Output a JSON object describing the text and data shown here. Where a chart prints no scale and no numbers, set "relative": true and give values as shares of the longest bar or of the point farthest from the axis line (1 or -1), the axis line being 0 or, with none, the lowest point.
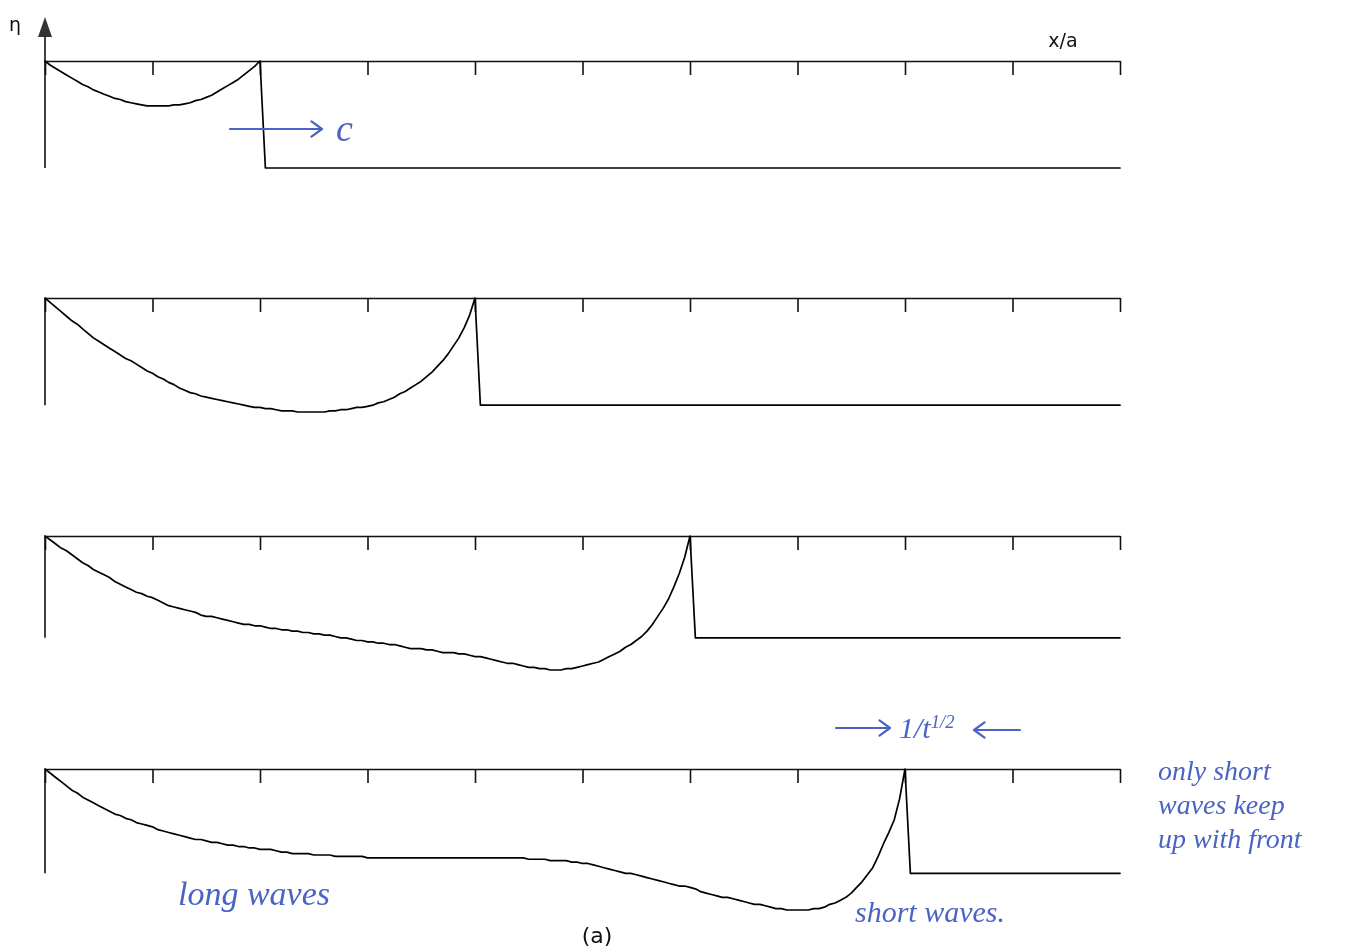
{
  "chart_data": [
    {
      "type": "line",
      "xlabel": "x/a",
      "ylabel": "η",
      "relative": true,
      "color": "#000000",
      "categories": [
        null,
        null,
        null,
        null,
        null,
        null,
        null,
        null,
        null,
        null,
        null,
        null,
        null,
        null,
        null,
        null,
        null,
        null,
        null,
        null,
        null,
        null,
        null,
        null,
        null,
        null,
        null,
        null,
        null,
        null,
        null,
        null,
        null,
        null,
        null,
        null,
        null,
        null,
        null,
        null,
        null,
        null,
        null,
        null,
        null,
        null,
        null,
        null,
        null,
        null,
        null,
        null,
        null,
        null,
        null,
        null,
        null,
        null,
        null,
        null,
        null,
        null,
        null,
        null,
        null,
        null,
        null,
        null,
        null,
        null,
        null,
        null,
        null,
        null,
        null,
        null,
        null,
        null,
        null,
        null,
        null,
        null,
        null,
        null,
        null,
        null,
        null,
        null,
        null,
        null,
        null,
        null,
        null,
        null,
        null,
        null,
        null,
        null,
        null,
        null,
        null,
        null,
        null,
        null,
        null,
        null,
        null,
        null,
        null,
        null,
        null,
        null,
        null,
        null,
        null,
        null,
        null,
        null,
        null,
        null,
        null,
        null,
        null,
        null,
        null,
        null,
        null,
        null,
        null,
        null,
        null,
        null,
        null,
        null,
        null,
        null,
        null,
        null,
        null,
        null,
        null,
        null,
        null,
        null,
        null,
        null,
        null,
        null,
        null,
        null,
        null,
        null,
        null,
        null,
        null,
        null,
        null,
        null,
        null,
        null,
        null,
        null,
        null,
        null,
        null,
        null,
        null,
        null,
        null,
        null,
        null,
        null,
        null,
        null,
        null,
        null,
        null,
        null,
        null,
        null,
        null,
        null,
        null,
        null,
        null,
        null,
        null,
        null,
        null,
        null,
        null,
        null,
        null,
        null,
        null,
        null,
        null,
        null,
        null,
        null,
        null
      ],
      "values": [
        0,
        -0.04,
        -0.07,
        -0.1,
        -0.13,
        -0.16,
        -0.19,
        -0.22,
        -0.24,
        -0.27,
        -0.29,
        -0.31,
        -0.33,
        -0.35,
        -0.36,
        -0.38,
        -0.39,
        -0.4,
        -0.41,
        -0.42,
        -0.42,
        -0.42,
        -0.42,
        -0.42,
        -0.41,
        -0.41,
        -0.4,
        -0.39,
        -0.37,
        -0.36,
        -0.34,
        -0.32,
        -0.29,
        -0.26,
        -0.23,
        -0.2,
        -0.17,
        -0.13,
        -0.09,
        -0.05,
        0,
        -1,
        -1,
        -1,
        -1,
        -1,
        -1,
        -1,
        -1,
        -1,
        -1,
        -1,
        -1,
        -1,
        -1,
        -1,
        -1,
        -1,
        -1,
        -1,
        -1,
        -1,
        -1,
        -1,
        -1,
        -1,
        -1,
        -1,
        -1,
        -1,
        -1,
        -1,
        -1,
        -1,
        -1,
        -1,
        -1,
        -1,
        -1,
        -1,
        -1,
        -1,
        -1,
        -1,
        -1,
        -1,
        -1,
        -1,
        -1,
        -1,
        -1,
        -1,
        -1,
        -1,
        -1,
        -1,
        -1,
        -1,
        -1,
        -1,
        -1,
        -1,
        -1,
        -1,
        -1,
        -1,
        -1,
        -1,
        -1,
        -1,
        -1,
        -1,
        -1,
        -1,
        -1,
        -1,
        -1,
        -1,
        -1,
        -1,
        -1,
        -1,
        -1,
        -1,
        -1,
        -1,
        -1,
        -1,
        -1,
        -1,
        -1,
        -1,
        -1,
        -1,
        -1,
        -1,
        -1,
        -1,
        -1,
        -1,
        -1,
        -1,
        -1,
        -1,
        -1,
        -1,
        -1,
        -1,
        -1,
        -1,
        -1,
        -1,
        -1,
        -1,
        -1,
        -1,
        -1,
        -1,
        -1,
        -1,
        -1,
        -1,
        -1,
        -1,
        -1,
        -1,
        -1,
        -1,
        -1,
        -1,
        -1,
        -1,
        -1,
        -1,
        -1,
        -1,
        -1,
        -1,
        -1,
        -1,
        -1,
        -1,
        -1,
        -1,
        -1,
        -1,
        -1,
        -1,
        -1,
        -1,
        -1,
        -1,
        -1,
        -1,
        -1,
        -1,
        -1,
        -1,
        -1,
        -1,
        -1
      ],
      "annotations": [
        "c"
      ]
    },
    {
      "type": "line",
      "relative": true,
      "color": "#000000",
      "categories": [
        null,
        null,
        null,
        null,
        null,
        null,
        null,
        null,
        null,
        null,
        null,
        null,
        null,
        null,
        null,
        null,
        null,
        null,
        null,
        null,
        null,
        null,
        null,
        null,
        null,
        null,
        null,
        null,
        null,
        null,
        null,
        null,
        null,
        null,
        null,
        null,
        null,
        null,
        null,
        null,
        null,
        null,
        null,
        null,
        null,
        null,
        null,
        null,
        null,
        null,
        null,
        null,
        null,
        null,
        null,
        null,
        null,
        null,
        null,
        null,
        null,
        null,
        null,
        null,
        null,
        null,
        null,
        null,
        null,
        null,
        null,
        null,
        null,
        null,
        null,
        null,
        null,
        null,
        null,
        null,
        null,
        null,
        null,
        null,
        null,
        null,
        null,
        null,
        null,
        null,
        null,
        null,
        null,
        null,
        null,
        null,
        null,
        null,
        null,
        null,
        null,
        null,
        null,
        null,
        null,
        null,
        null,
        null,
        null,
        null,
        null,
        null,
        null,
        null,
        null,
        null,
        null,
        null,
        null,
        null,
        null,
        null,
        null,
        null,
        null,
        null,
        null,
        null,
        null,
        null,
        null,
        null,
        null,
        null,
        null,
        null,
        null,
        null,
        null,
        null,
        null,
        null,
        null,
        null,
        null,
        null,
        null,
        null,
        null,
        null,
        null,
        null,
        null,
        null,
        null,
        null,
        null,
        null,
        null,
        null,
        null,
        null,
        null,
        null,
        null,
        null,
        null,
        null,
        null,
        null,
        null,
        null,
        null,
        null,
        null,
        null,
        null,
        null,
        null,
        null,
        null,
        null,
        null,
        null,
        null,
        null,
        null,
        null,
        null,
        null,
        null,
        null,
        null,
        null,
        null,
        null,
        null,
        null,
        null,
        null,
        null
      ],
      "values": [
        0,
        -0.04,
        -0.08,
        -0.12,
        -0.16,
        -0.2,
        -0.23,
        -0.27,
        -0.31,
        -0.35,
        -0.38,
        -0.41,
        -0.44,
        -0.47,
        -0.5,
        -0.53,
        -0.55,
        -0.58,
        -0.61,
        -0.64,
        -0.66,
        -0.69,
        -0.71,
        -0.74,
        -0.76,
        -0.79,
        -0.81,
        -0.83,
        -0.84,
        -0.86,
        -0.87,
        -0.88,
        -0.89,
        -0.9,
        -0.91,
        -0.92,
        -0.93,
        -0.94,
        -0.95,
        -0.96,
        -0.96,
        -0.97,
        -0.97,
        -0.98,
        -0.99,
        -0.99,
        -0.99,
        -1,
        -1,
        -1,
        -1,
        -1,
        -1,
        -0.99,
        -0.99,
        -0.98,
        -0.98,
        -0.97,
        -0.96,
        -0.96,
        -0.95,
        -0.94,
        -0.92,
        -0.91,
        -0.89,
        -0.87,
        -0.84,
        -0.82,
        -0.79,
        -0.76,
        -0.73,
        -0.69,
        -0.65,
        -0.6,
        -0.55,
        -0.49,
        -0.42,
        -0.35,
        -0.26,
        -0.15,
        0,
        -0.94,
        -0.94,
        -0.94,
        -0.94,
        -0.94,
        -0.94,
        -0.94,
        -0.94,
        -0.94,
        -0.94,
        -0.94,
        -0.94,
        -0.94,
        -0.94,
        -0.94,
        -0.94,
        -0.94,
        -0.94,
        -0.94,
        -0.94,
        -0.94,
        -0.94,
        -0.94,
        -0.94,
        -0.94,
        -0.94,
        -0.94,
        -0.94,
        -0.94,
        -0.94,
        -0.94,
        -0.94,
        -0.94,
        -0.94,
        -0.94,
        -0.94,
        -0.94,
        -0.94,
        -0.94,
        -0.94,
        -0.94,
        -0.94,
        -0.94,
        -0.94,
        -0.94,
        -0.94,
        -0.94,
        -0.94,
        -0.94,
        -0.94,
        -0.94,
        -0.94,
        -0.94,
        -0.94,
        -0.94,
        -0.94,
        -0.94,
        -0.94,
        -0.94,
        -0.94,
        -0.94,
        -0.94,
        -0.94,
        -0.94,
        -0.94,
        -0.94,
        -0.94,
        -0.94,
        -0.94,
        -0.94,
        -0.94,
        -0.94,
        -0.94,
        -0.94,
        -0.94,
        -0.94,
        -0.94,
        -0.94,
        -0.94,
        -0.94,
        -0.94,
        -0.94,
        -0.94,
        -0.94,
        -0.94,
        -0.94,
        -0.94,
        -0.94,
        -0.94,
        -0.94,
        -0.94,
        -0.94,
        -0.94,
        -0.94,
        -0.94,
        -0.94,
        -0.94,
        -0.94,
        -0.94,
        -0.94,
        -0.94,
        -0.94,
        -0.94,
        -0.94,
        -0.94,
        -0.94,
        -0.94,
        -0.94,
        -0.94,
        -0.94,
        -0.94,
        -0.94,
        -0.94,
        -0.94,
        -0.94,
        -0.94,
        -0.94,
        -0.94,
        -0.94,
        -0.94
      ]
    },
    {
      "type": "line",
      "relative": true,
      "color": "#000000",
      "categories": [
        null,
        null,
        null,
        null,
        null,
        null,
        null,
        null,
        null,
        null,
        null,
        null,
        null,
        null,
        null,
        null,
        null,
        null,
        null,
        null,
        null,
        null,
        null,
        null,
        null,
        null,
        null,
        null,
        null,
        null,
        null,
        null,
        null,
        null,
        null,
        null,
        null,
        null,
        null,
        null,
        null,
        null,
        null,
        null,
        null,
        null,
        null,
        null,
        null,
        null,
        null,
        null,
        null,
        null,
        null,
        null,
        null,
        null,
        null,
        null,
        null,
        null,
        null,
        null,
        null,
        null,
        null,
        null,
        null,
        null,
        null,
        null,
        null,
        null,
        null,
        null,
        null,
        null,
        null,
        null,
        null,
        null,
        null,
        null,
        null,
        null,
        null,
        null,
        null,
        null,
        null,
        null,
        null,
        null,
        null,
        null,
        null,
        null,
        null,
        null,
        null,
        null,
        null,
        null,
        null,
        null,
        null,
        null,
        null,
        null,
        null,
        null,
        null,
        null,
        null,
        null,
        null,
        null,
        null,
        null,
        null,
        null,
        null,
        null,
        null,
        null,
        null,
        null,
        null,
        null,
        null,
        null,
        null,
        null,
        null,
        null,
        null,
        null,
        null,
        null,
        null,
        null,
        null,
        null,
        null,
        null,
        null,
        null,
        null,
        null,
        null,
        null,
        null,
        null,
        null,
        null,
        null,
        null,
        null,
        null,
        null,
        null,
        null,
        null,
        null,
        null,
        null,
        null,
        null,
        null,
        null,
        null,
        null,
        null,
        null,
        null,
        null,
        null,
        null,
        null,
        null,
        null,
        null,
        null,
        null,
        null,
        null,
        null,
        null,
        null,
        null,
        null,
        null,
        null,
        null,
        null,
        null,
        null,
        null,
        null,
        null
      ],
      "values": [
        0,
        -0.03,
        -0.06,
        -0.09,
        -0.11,
        -0.14,
        -0.17,
        -0.2,
        -0.22,
        -0.25,
        -0.27,
        -0.29,
        -0.31,
        -0.34,
        -0.36,
        -0.38,
        -0.4,
        -0.42,
        -0.43,
        -0.45,
        -0.46,
        -0.48,
        -0.5,
        -0.52,
        -0.53,
        -0.54,
        -0.55,
        -0.56,
        -0.57,
        -0.59,
        -0.6,
        -0.6,
        -0.61,
        -0.62,
        -0.63,
        -0.64,
        -0.65,
        -0.66,
        -0.66,
        -0.67,
        -0.67,
        -0.68,
        -0.69,
        -0.69,
        -0.7,
        -0.7,
        -0.71,
        -0.71,
        -0.72,
        -0.72,
        -0.73,
        -0.73,
        -0.74,
        -0.74,
        -0.75,
        -0.76,
        -0.76,
        -0.77,
        -0.78,
        -0.78,
        -0.79,
        -0.79,
        -0.8,
        -0.8,
        -0.81,
        -0.81,
        -0.82,
        -0.83,
        -0.84,
        -0.84,
        -0.84,
        -0.85,
        -0.85,
        -0.86,
        -0.87,
        -0.87,
        -0.87,
        -0.88,
        -0.88,
        -0.89,
        -0.9,
        -0.9,
        -0.91,
        -0.92,
        -0.93,
        -0.94,
        -0.95,
        -0.95,
        -0.96,
        -0.97,
        -0.98,
        -0.98,
        -0.99,
        -0.99,
        -1,
        -1,
        -1,
        -0.99,
        -0.99,
        -0.98,
        -0.97,
        -0.96,
        -0.95,
        -0.94,
        -0.92,
        -0.9,
        -0.88,
        -0.86,
        -0.83,
        -0.81,
        -0.78,
        -0.75,
        -0.71,
        -0.66,
        -0.6,
        -0.54,
        -0.47,
        -0.38,
        -0.28,
        -0.16,
        0,
        -0.76,
        -0.76,
        -0.76,
        -0.76,
        -0.76,
        -0.76,
        -0.76,
        -0.76,
        -0.76,
        -0.76,
        -0.76,
        -0.76,
        -0.76,
        -0.76,
        -0.76,
        -0.76,
        -0.76,
        -0.76,
        -0.76,
        -0.76,
        -0.76,
        -0.76,
        -0.76,
        -0.76,
        -0.76,
        -0.76,
        -0.76,
        -0.76,
        -0.76,
        -0.76,
        -0.76,
        -0.76,
        -0.76,
        -0.76,
        -0.76,
        -0.76,
        -0.76,
        -0.76,
        -0.76,
        -0.76,
        -0.76,
        -0.76,
        -0.76,
        -0.76,
        -0.76,
        -0.76,
        -0.76,
        -0.76,
        -0.76,
        -0.76,
        -0.76,
        -0.76,
        -0.76,
        -0.76,
        -0.76,
        -0.76,
        -0.76,
        -0.76,
        -0.76,
        -0.76,
        -0.76,
        -0.76,
        -0.76,
        -0.76,
        -0.76,
        -0.76,
        -0.76,
        -0.76,
        -0.76,
        -0.76,
        -0.76,
        -0.76,
        -0.76,
        -0.76,
        -0.76,
        -0.76,
        -0.76,
        -0.76,
        -0.76,
        -0.76
      ]
    },
    {
      "type": "line",
      "relative": true,
      "color": "#000000",
      "categories": [
        null,
        null,
        null,
        null,
        null,
        null,
        null,
        null,
        null,
        null,
        null,
        null,
        null,
        null,
        null,
        null,
        null,
        null,
        null,
        null,
        null,
        null,
        null,
        null,
        null,
        null,
        null,
        null,
        null,
        null,
        null,
        null,
        null,
        null,
        null,
        null,
        null,
        null,
        null,
        null,
        null,
        null,
        null,
        null,
        null,
        null,
        null,
        null,
        null,
        null,
        null,
        null,
        null,
        null,
        null,
        null,
        null,
        null,
        null,
        null,
        null,
        null,
        null,
        null,
        null,
        null,
        null,
        null,
        null,
        null,
        null,
        null,
        null,
        null,
        null,
        null,
        null,
        null,
        null,
        null,
        null,
        null,
        null,
        null,
        null,
        null,
        null,
        null,
        null,
        null,
        null,
        null,
        null,
        null,
        null,
        null,
        null,
        null,
        null,
        null,
        null,
        null,
        null,
        null,
        null,
        null,
        null,
        null,
        null,
        null,
        null,
        null,
        null,
        null,
        null,
        null,
        null,
        null,
        null,
        null,
        null,
        null,
        null,
        null,
        null,
        null,
        null,
        null,
        null,
        null,
        null,
        null,
        null,
        null,
        null,
        null,
        null,
        null,
        null,
        null,
        null,
        null,
        null,
        null,
        null,
        null,
        null,
        null,
        null,
        null,
        null,
        null,
        null,
        null,
        null,
        null,
        null,
        null,
        null,
        null,
        null,
        null,
        null,
        null,
        null,
        null,
        null,
        null,
        null,
        null,
        null,
        null,
        null,
        null,
        null,
        null,
        null,
        null,
        null,
        null,
        null,
        null,
        null,
        null,
        null,
        null,
        null,
        null,
        null,
        null,
        null,
        null,
        null,
        null,
        null,
        null,
        null,
        null,
        null,
        null,
        null
      ],
      "values": [
        0,
        -0.03,
        -0.06,
        -0.09,
        -0.12,
        -0.15,
        -0.17,
        -0.2,
        -0.22,
        -0.24,
        -0.26,
        -0.28,
        -0.3,
        -0.32,
        -0.33,
        -0.35,
        -0.36,
        -0.38,
        -0.39,
        -0.4,
        -0.41,
        -0.43,
        -0.44,
        -0.45,
        -0.46,
        -0.47,
        -0.48,
        -0.49,
        -0.5,
        -0.5,
        -0.51,
        -0.52,
        -0.52,
        -0.53,
        -0.54,
        -0.54,
        -0.55,
        -0.55,
        -0.56,
        -0.56,
        -0.57,
        -0.57,
        -0.57,
        -0.58,
        -0.59,
        -0.59,
        -0.6,
        -0.6,
        -0.6,
        -0.6,
        -0.61,
        -0.61,
        -0.61,
        -0.61,
        -0.62,
        -0.62,
        -0.62,
        -0.62,
        -0.62,
        -0.62,
        -0.63,
        -0.63,
        -0.63,
        -0.63,
        -0.63,
        -0.63,
        -0.63,
        -0.63,
        -0.63,
        -0.63,
        -0.63,
        -0.63,
        -0.63,
        -0.63,
        -0.63,
        -0.63,
        -0.63,
        -0.63,
        -0.63,
        -0.63,
        -0.63,
        -0.63,
        -0.63,
        -0.63,
        -0.63,
        -0.63,
        -0.63,
        -0.63,
        -0.63,
        -0.63,
        -0.64,
        -0.64,
        -0.64,
        -0.64,
        -0.65,
        -0.65,
        -0.65,
        -0.65,
        -0.66,
        -0.66,
        -0.67,
        -0.67,
        -0.68,
        -0.69,
        -0.7,
        -0.71,
        -0.72,
        -0.73,
        -0.74,
        -0.74,
        -0.75,
        -0.76,
        -0.77,
        -0.78,
        -0.79,
        -0.8,
        -0.81,
        -0.82,
        -0.83,
        -0.83,
        -0.84,
        -0.85,
        -0.87,
        -0.88,
        -0.89,
        -0.9,
        -0.91,
        -0.91,
        -0.92,
        -0.93,
        -0.94,
        -0.95,
        -0.96,
        -0.96,
        -0.97,
        -0.98,
        -0.99,
        -0.99,
        -1,
        -1,
        -1,
        -1,
        -1,
        -0.99,
        -0.99,
        -0.98,
        -0.96,
        -0.95,
        -0.93,
        -0.91,
        -0.88,
        -0.84,
        -0.8,
        -0.75,
        -0.7,
        -0.62,
        -0.53,
        -0.45,
        -0.36,
        -0.21,
        0,
        -0.74,
        -0.74,
        -0.74,
        -0.74,
        -0.74,
        -0.74,
        -0.74,
        -0.74,
        -0.74,
        -0.74,
        -0.74,
        -0.74,
        -0.74,
        -0.74,
        -0.74,
        -0.74,
        -0.74,
        -0.74,
        -0.74,
        -0.74,
        -0.74,
        -0.74,
        -0.74,
        -0.74,
        -0.74,
        -0.74,
        -0.74,
        -0.74,
        -0.74,
        -0.74,
        -0.74,
        -0.74,
        -0.74,
        -0.74,
        -0.74,
        -0.74,
        -0.74,
        -0.74,
        -0.74,
        -0.74
      ],
      "annotations": [
        "1/t$^{1/2}$",
        "long waves",
        "short waves.",
        "only short waves keep up with front",
        "(a)"
      ]
    }
  ]
}
